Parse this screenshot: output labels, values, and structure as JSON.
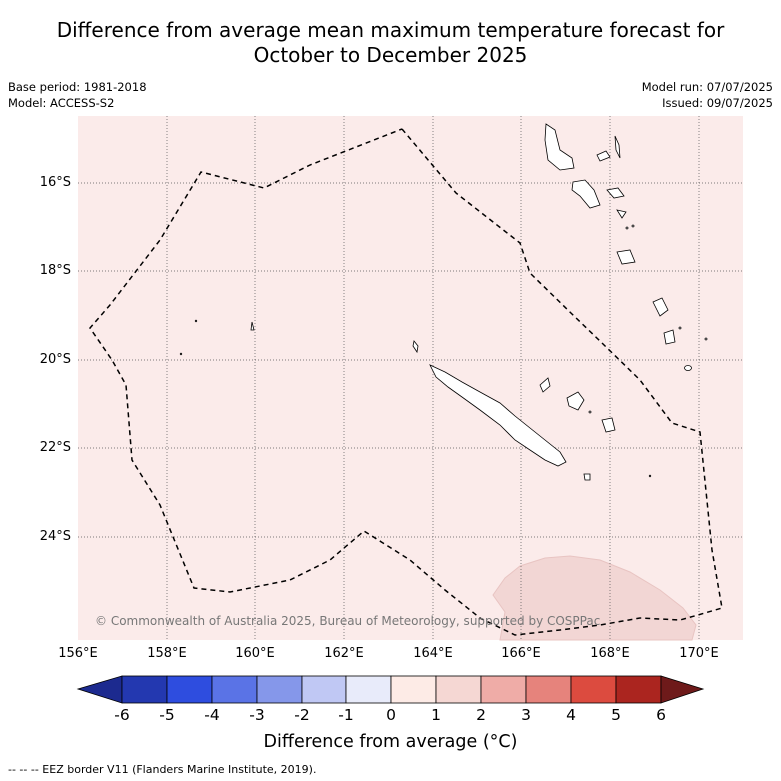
{
  "title_line1": "Difference from average mean maximum temperature forecast for",
  "title_line2": "October to December 2025",
  "base_period": "Base period: 1981-2018",
  "model": "Model: ACCESS-S2",
  "model_run": "Model run: 07/07/2025",
  "issued": "Issued: 09/07/2025",
  "copyright": "© Commonwealth of Australia 2025, Bureau of Meteorology, supported by COSPPac",
  "lat_labels": [
    "16°S",
    "18°S",
    "20°S",
    "22°S",
    "24°S"
  ],
  "lon_labels": [
    "156°E",
    "158°E",
    "160°E",
    "162°E",
    "164°E",
    "166°E",
    "168°E",
    "170°E"
  ],
  "colorbar": {
    "ticks": [
      "-6",
      "-5",
      "-4",
      "-3",
      "-2",
      "-1",
      "0",
      "1",
      "2",
      "3",
      "4",
      "5",
      "6"
    ],
    "colors": [
      "#1c2a8f",
      "#2338b0",
      "#2e4ddf",
      "#5a73e6",
      "#8597ea",
      "#c0c8f4",
      "#e8ebfa",
      "#fdebe6",
      "#f5d7d3",
      "#efaca7",
      "#e6837c",
      "#dc4b3f",
      "#ab251f",
      "#6e1a1a"
    ],
    "title": "Difference from average (°C)"
  },
  "footnote": "--  --  -- EEZ border V11 (Flanders Marine Institute, 2019).",
  "colors": {
    "background_anomaly": "#fbebea",
    "warm_patch": "#f2d6d4"
  }
}
